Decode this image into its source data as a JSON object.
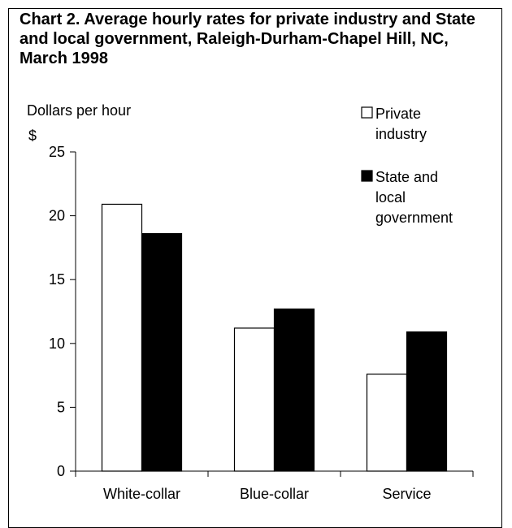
{
  "chart_data": {
    "type": "bar",
    "title": "Chart 2. Average hourly rates for private industry and State and local government, Raleigh-Durham-Chapel Hill, NC, March 1998",
    "ylabel": "Dollars per hour",
    "yunit": "$",
    "categories": [
      "White-collar",
      "Blue-collar",
      "Service"
    ],
    "series": [
      {
        "name": "Private industry",
        "name_lines": [
          "Private",
          "industry"
        ],
        "color": "#ffffff",
        "values": [
          20.9,
          11.2,
          7.6
        ]
      },
      {
        "name": "State and local government",
        "name_lines": [
          "State and",
          "local",
          "government"
        ],
        "color": "#000000",
        "values": [
          18.6,
          12.7,
          10.9
        ]
      }
    ],
    "ylim": [
      0,
      25
    ],
    "yticks": [
      0,
      5,
      10,
      15,
      20,
      25
    ],
    "legend_position": "top-right",
    "grid": false
  }
}
